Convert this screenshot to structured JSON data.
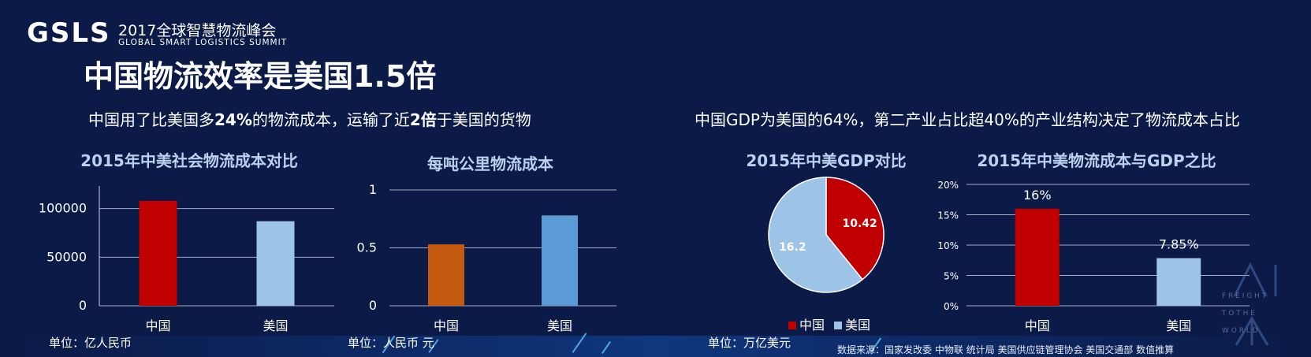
{
  "header": {
    "logo_text": "GSLS",
    "event_title": "2017全球智慧物流峰会",
    "event_subtitle": "GLOBAL SMART LOGISTICS SUMMIT"
  },
  "page_title": "中国物流效率是美国1.5倍",
  "subtitle_left": {
    "part1": "中国用了比美国多",
    "bold1": "24%",
    "part2": "的物流成本，运输了近",
    "bold2": "2倍",
    "part3": "于美国的货物"
  },
  "subtitle_right": "中国GDP为美国的64%，第二产业占比超40%的产业结构决定了物流成本占比",
  "units": {
    "chart1": "单位：亿人民币",
    "chart2": "单位：人民币 元",
    "chart3": "单位：万亿美元"
  },
  "source": "数据来源：国家发改委  中物联 统计局  美国供应链管理协会 美国交通部  数值推算",
  "watermark": {
    "line1": "F R E I G H T",
    "line2": "T O   T H E",
    "line3": "W O R L D"
  },
  "colors": {
    "china_red": "#c00000",
    "usa_light_blue": "#9dc3e6",
    "china_orange": "#c55a11",
    "usa_blue": "#5b9bd5"
  },
  "chart_data": [
    {
      "type": "bar",
      "title": "2015年中美社会物流成本对比",
      "categories": [
        "中国",
        "美国"
      ],
      "values": [
        108000,
        87000
      ],
      "ylim": [
        0,
        120000
      ],
      "yticks": [
        0,
        50000,
        100000
      ],
      "colors": [
        "#c00000",
        "#9dc3e6"
      ],
      "grid": true
    },
    {
      "type": "bar",
      "title": "每吨公里物流成本",
      "categories": [
        "中国",
        "美国"
      ],
      "values": [
        0.53,
        0.78
      ],
      "ylim": [
        0,
        1
      ],
      "yticks": [
        0,
        0.5,
        1
      ],
      "colors": [
        "#c55a11",
        "#5b9bd5"
      ],
      "grid": true
    },
    {
      "type": "pie",
      "title": "2015年中美GDP对比",
      "labels": [
        "中国",
        "美国"
      ],
      "values": [
        10.42,
        16.2
      ],
      "colors": [
        "#c00000",
        "#9dc3e6"
      ],
      "legend": "bottom"
    },
    {
      "type": "bar",
      "title": "2015年中美物流成本与GDP之比",
      "categories": [
        "中国",
        "美国"
      ],
      "values": [
        16,
        7.85
      ],
      "data_labels": [
        "16%",
        "7.85%"
      ],
      "ylim": [
        0,
        20
      ],
      "yticks": [
        "0%",
        "5%",
        "10%",
        "15%",
        "20%"
      ],
      "colors": [
        "#c00000",
        "#9dc3e6"
      ],
      "grid": true
    }
  ]
}
